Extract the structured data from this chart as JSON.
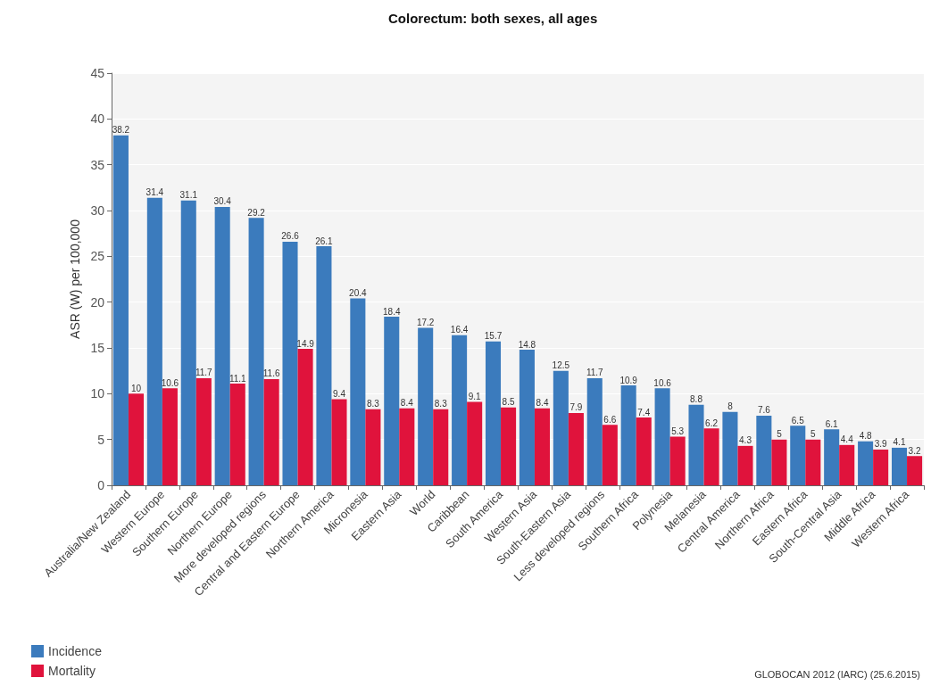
{
  "chart_data": {
    "type": "bar",
    "title": "Colorectum: both sexes, all ages",
    "ylabel": "ASR (W) per 100,000",
    "categories": [
      "Australia/New Zealand",
      "Western Europe",
      "Southern Europe",
      "Northern Europe",
      "More developed regions",
      "Central and Eastern Europe",
      "Northern America",
      "Micronesia",
      "Eastern Asia",
      "World",
      "Caribbean",
      "South America",
      "Western Asia",
      "South-Eastern Asia",
      "Less developed regions",
      "Southern Africa",
      "Polynesia",
      "Melanesia",
      "Central America",
      "Northern Africa",
      "Eastern Africa",
      "South-Central Asia",
      "Middle Africa",
      "Western Africa"
    ],
    "series": [
      {
        "name": "Incidence",
        "color": "#3b7bbd",
        "values": [
          38.2,
          31.4,
          31.1,
          30.4,
          29.2,
          26.6,
          26.1,
          20.4,
          18.4,
          17.2,
          16.4,
          15.7,
          14.8,
          12.5,
          11.7,
          10.9,
          10.6,
          8.8,
          8,
          7.6,
          6.5,
          6.1,
          4.8,
          4.1
        ]
      },
      {
        "name": "Mortality",
        "color": "#e0133c",
        "values": [
          10,
          10.6,
          11.7,
          11.1,
          11.6,
          14.9,
          9.4,
          8.3,
          8.4,
          8.3,
          9.1,
          8.5,
          8.4,
          7.9,
          6.6,
          7.4,
          5.3,
          6.2,
          4.3,
          5,
          5,
          4.4,
          3.9,
          3.2
        ]
      }
    ],
    "ylim": [
      0,
      45
    ],
    "yticks": [
      0,
      5,
      10,
      15,
      20,
      25,
      30,
      35,
      40,
      45
    ],
    "grid": "y",
    "legend": "bottom left",
    "data_labels": true,
    "annotations": [
      "GLOBOCAN 2012 (IARC) (25.6.2015)"
    ]
  }
}
